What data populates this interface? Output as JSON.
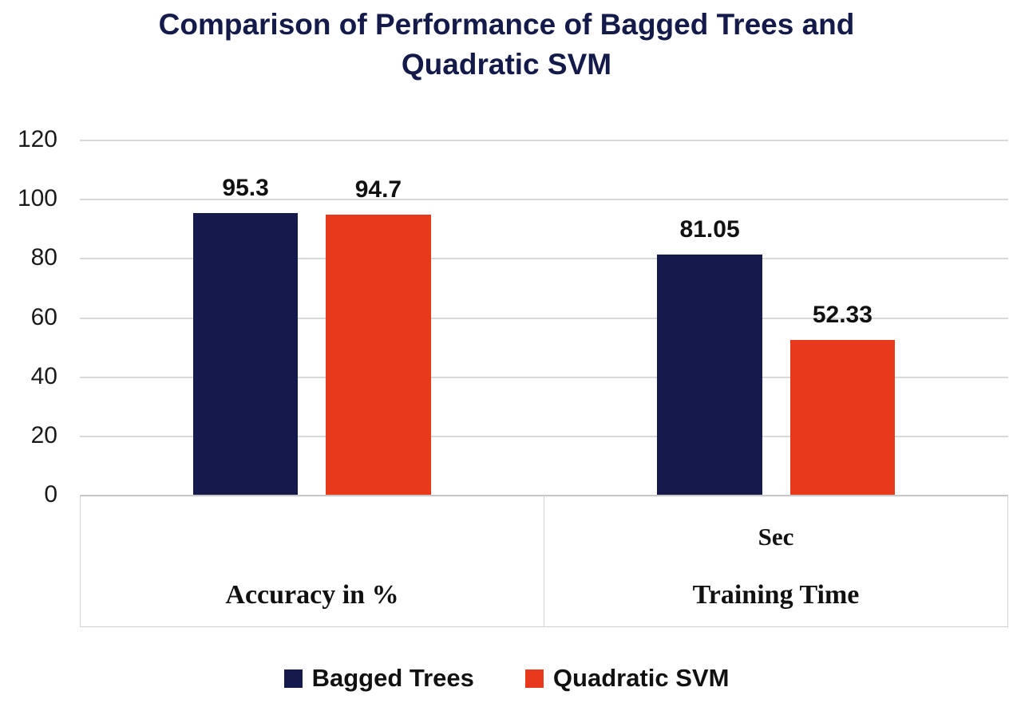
{
  "title": "Comparison of Performance of Bagged Trees and Quadratic SVM",
  "colors": {
    "bagged_trees": "#15194c",
    "quadratic_svm": "#e8391c",
    "title_text": "#141b4a",
    "gridline": "#d9d9d9"
  },
  "chart_data": {
    "type": "bar",
    "title": "Comparison of Performance of Bagged Trees and Quadratic SVM",
    "categories": [
      "Accuracy in %",
      "Training Time"
    ],
    "category_sublabels": [
      "",
      "Sec"
    ],
    "series": [
      {
        "name": "Bagged Trees",
        "color": "#15194c",
        "values": [
          95.3,
          81.05
        ]
      },
      {
        "name": "Quadratic SVM",
        "color": "#e8391c",
        "values": [
          94.7,
          52.33
        ]
      }
    ],
    "value_labels": [
      [
        "95.3",
        "81.05"
      ],
      [
        "94.7",
        "52.33"
      ]
    ],
    "yticks": [
      0,
      20,
      40,
      60,
      80,
      100,
      120
    ],
    "ylim": [
      0,
      120
    ],
    "xlabel": "",
    "ylabel": "",
    "grid": true,
    "legend_position": "bottom"
  }
}
